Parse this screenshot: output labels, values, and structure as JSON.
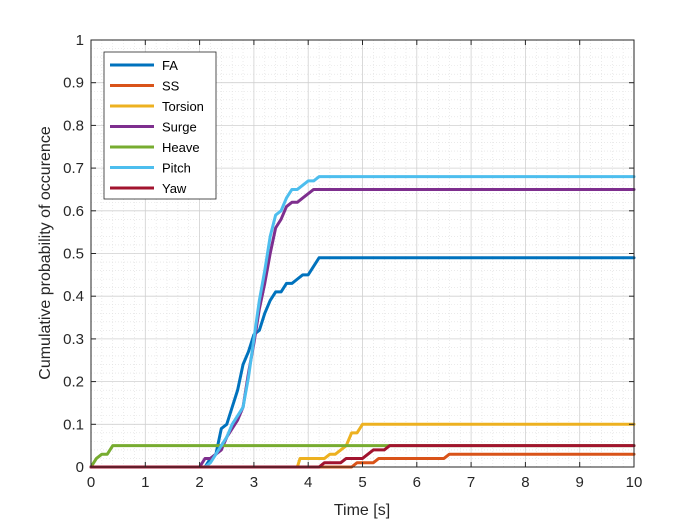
{
  "chart_data": {
    "type": "line",
    "title": "",
    "xlabel": "Time [s]",
    "ylabel": "Cumulative probability of occurence",
    "xlim": [
      0,
      10
    ],
    "ylim": [
      0,
      1
    ],
    "xticks": [
      "0",
      "1",
      "2",
      "3",
      "4",
      "5",
      "6",
      "7",
      "8",
      "9",
      "10"
    ],
    "yticks": [
      "0",
      "0.1",
      "0.2",
      "0.3",
      "0.4",
      "0.5",
      "0.6",
      "0.7",
      "0.8",
      "0.9",
      "1"
    ],
    "grid": true,
    "minor_grid": true,
    "legend_position": "top-left",
    "series": [
      {
        "name": "FA",
        "color": "#0072BD",
        "x": [
          0,
          2.0,
          2.1,
          2.2,
          2.3,
          2.4,
          2.5,
          2.6,
          2.7,
          2.8,
          2.9,
          3.0,
          3.1,
          3.2,
          3.3,
          3.4,
          3.5,
          3.6,
          3.7,
          3.8,
          3.9,
          4.0,
          4.1,
          4.2,
          10
        ],
        "y": [
          0,
          0,
          0,
          0.02,
          0.03,
          0.09,
          0.1,
          0.14,
          0.18,
          0.24,
          0.27,
          0.31,
          0.32,
          0.36,
          0.39,
          0.41,
          0.41,
          0.43,
          0.43,
          0.44,
          0.45,
          0.45,
          0.47,
          0.49,
          0.49
        ]
      },
      {
        "name": "SS",
        "color": "#D95319",
        "x": [
          0,
          4.6,
          4.7,
          4.8,
          4.9,
          5.0,
          5.1,
          5.2,
          5.3,
          5.5,
          6.5,
          6.6,
          10
        ],
        "y": [
          0,
          0,
          0,
          0,
          0.01,
          0.01,
          0.01,
          0.01,
          0.02,
          0.02,
          0.02,
          0.03,
          0.03
        ]
      },
      {
        "name": "Torsion",
        "color": "#EDB120",
        "x": [
          0,
          3.8,
          3.85,
          4.0,
          4.2,
          4.3,
          4.4,
          4.5,
          4.6,
          4.7,
          4.8,
          4.9,
          5.0,
          5.1,
          10
        ],
        "y": [
          0,
          0,
          0.02,
          0.02,
          0.02,
          0.02,
          0.03,
          0.03,
          0.04,
          0.05,
          0.08,
          0.08,
          0.1,
          0.1,
          0.1
        ]
      },
      {
        "name": "Surge",
        "color": "#7E2F8E",
        "x": [
          0,
          2.0,
          2.1,
          2.2,
          2.3,
          2.4,
          2.5,
          2.6,
          2.7,
          2.8,
          2.9,
          3.0,
          3.1,
          3.2,
          3.3,
          3.4,
          3.5,
          3.6,
          3.7,
          3.8,
          3.9,
          4.0,
          4.1,
          4.2,
          10
        ],
        "y": [
          0,
          0,
          0.02,
          0.02,
          0.03,
          0.04,
          0.07,
          0.09,
          0.11,
          0.14,
          0.22,
          0.29,
          0.37,
          0.43,
          0.5,
          0.56,
          0.58,
          0.61,
          0.62,
          0.62,
          0.63,
          0.64,
          0.65,
          0.65,
          0.65
        ]
      },
      {
        "name": "Heave",
        "color": "#77AC30",
        "x": [
          0,
          0.05,
          0.1,
          0.2,
          0.3,
          0.35,
          0.4,
          10
        ],
        "y": [
          0,
          0.01,
          0.02,
          0.03,
          0.03,
          0.04,
          0.05,
          0.05
        ]
      },
      {
        "name": "Pitch",
        "color": "#4DBEEE",
        "x": [
          0,
          2.1,
          2.2,
          2.3,
          2.4,
          2.5,
          2.6,
          2.7,
          2.8,
          2.9,
          3.0,
          3.1,
          3.2,
          3.3,
          3.4,
          3.5,
          3.6,
          3.7,
          3.8,
          3.9,
          4.0,
          4.1,
          4.2,
          10
        ],
        "y": [
          0,
          0,
          0.01,
          0.03,
          0.05,
          0.07,
          0.1,
          0.12,
          0.14,
          0.21,
          0.3,
          0.39,
          0.46,
          0.54,
          0.59,
          0.6,
          0.63,
          0.65,
          0.65,
          0.66,
          0.67,
          0.67,
          0.68,
          0.68
        ]
      },
      {
        "name": "Yaw",
        "color": "#A2142F",
        "x": [
          0,
          4.2,
          4.3,
          4.6,
          4.7,
          4.8,
          4.9,
          5.0,
          5.1,
          5.2,
          5.3,
          5.4,
          5.5,
          10
        ],
        "y": [
          0,
          0,
          0.01,
          0.01,
          0.02,
          0.02,
          0.02,
          0.02,
          0.03,
          0.04,
          0.04,
          0.04,
          0.05,
          0.05
        ]
      }
    ]
  }
}
